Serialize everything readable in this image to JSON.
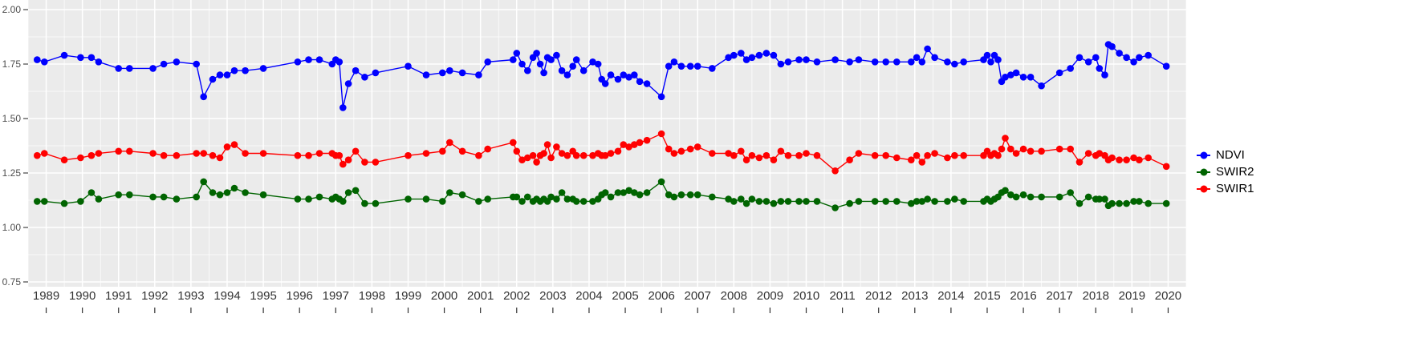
{
  "figure": {
    "background": "#FFFFFF",
    "panel_background": "#EBEBEB",
    "grid_color": "#FFFFFF",
    "axis_text_color": "#4D4D4D",
    "tick_color": "#333333"
  },
  "legend": {
    "position": "right",
    "items": [
      {
        "label": "NDVI",
        "color": "#0000FF"
      },
      {
        "label": "SWIR2",
        "color": "#006400"
      },
      {
        "label": "SWIR1",
        "color": "#FF0000"
      }
    ]
  },
  "chart_data": {
    "type": "line",
    "title": "",
    "xlabel": "",
    "ylabel": "",
    "grid": true,
    "legend_position": "right",
    "x_range": [
      1988.5,
      2020.5
    ],
    "y_range": [
      0.75,
      2.0
    ],
    "x_tick_labels": [
      "1989",
      "1990",
      "1991",
      "1992",
      "1993",
      "1994",
      "1995",
      "1996",
      "1997",
      "1998",
      "1999",
      "2000",
      "2001",
      "2002",
      "2003",
      "2004",
      "2005",
      "2006",
      "2007",
      "2008",
      "2009",
      "2010",
      "2011",
      "2012",
      "2013",
      "2014",
      "2015",
      "2016",
      "2017",
      "2018",
      "2019",
      "2020"
    ],
    "y_tick_labels": [
      "2.00",
      "1.75",
      "1.50",
      "1.25",
      "1.00",
      "0.75"
    ],
    "y_tick_values": [
      2.0,
      1.75,
      1.5,
      1.25,
      1.0,
      0.75
    ],
    "x": [
      1988.75,
      1988.95,
      1989.5,
      1989.95,
      1990.25,
      1990.45,
      1991.0,
      1991.3,
      1991.95,
      1992.25,
      1992.6,
      1993.15,
      1993.35,
      1993.6,
      1993.8,
      1994.0,
      1994.2,
      1994.5,
      1995.0,
      1995.95,
      1996.25,
      1996.55,
      1996.9,
      1997.0,
      1997.1,
      1997.2,
      1997.35,
      1997.55,
      1997.8,
      1998.1,
      1999.0,
      1999.5,
      1999.95,
      2000.15,
      2000.5,
      2000.95,
      2001.2,
      2001.9,
      2002.0,
      2002.15,
      2002.3,
      2002.45,
      2002.55,
      2002.65,
      2002.75,
      2002.85,
      2002.95,
      2003.1,
      2003.25,
      2003.4,
      2003.55,
      2003.65,
      2003.85,
      2004.1,
      2004.25,
      2004.35,
      2004.45,
      2004.6,
      2004.8,
      2004.95,
      2005.1,
      2005.25,
      2005.4,
      2005.6,
      2006.0,
      2006.2,
      2006.35,
      2006.55,
      2006.8,
      2007.0,
      2007.4,
      2007.85,
      2008.0,
      2008.2,
      2008.35,
      2008.5,
      2008.7,
      2008.9,
      2009.1,
      2009.3,
      2009.5,
      2009.8,
      2010.0,
      2010.3,
      2010.8,
      2011.2,
      2011.45,
      2011.9,
      2012.2,
      2012.5,
      2012.9,
      2013.05,
      2013.2,
      2013.35,
      2013.55,
      2013.9,
      2014.1,
      2014.35,
      2014.9,
      2015.0,
      2015.1,
      2015.2,
      2015.3,
      2015.4,
      2015.5,
      2015.65,
      2015.8,
      2016.0,
      2016.2,
      2016.5,
      2017.0,
      2017.3,
      2017.55,
      2017.8,
      2018.0,
      2018.1,
      2018.25,
      2018.35,
      2018.45,
      2018.65,
      2018.85,
      2019.05,
      2019.2,
      2019.45,
      2019.95
    ],
    "series": [
      {
        "name": "NDVI",
        "color": "#0000FF",
        "values": [
          1.77,
          1.76,
          1.79,
          1.78,
          1.78,
          1.76,
          1.73,
          1.73,
          1.73,
          1.75,
          1.76,
          1.75,
          1.6,
          1.68,
          1.7,
          1.7,
          1.72,
          1.72,
          1.73,
          1.76,
          1.77,
          1.77,
          1.75,
          1.77,
          1.76,
          1.55,
          1.66,
          1.72,
          1.69,
          1.71,
          1.74,
          1.7,
          1.71,
          1.72,
          1.71,
          1.7,
          1.76,
          1.77,
          1.8,
          1.75,
          1.72,
          1.78,
          1.8,
          1.75,
          1.71,
          1.78,
          1.77,
          1.79,
          1.72,
          1.7,
          1.74,
          1.77,
          1.72,
          1.76,
          1.75,
          1.68,
          1.66,
          1.7,
          1.68,
          1.7,
          1.69,
          1.7,
          1.67,
          1.66,
          1.6,
          1.74,
          1.76,
          1.74,
          1.74,
          1.74,
          1.73,
          1.78,
          1.79,
          1.8,
          1.77,
          1.78,
          1.79,
          1.8,
          1.79,
          1.75,
          1.76,
          1.77,
          1.77,
          1.76,
          1.77,
          1.76,
          1.77,
          1.76,
          1.76,
          1.76,
          1.76,
          1.78,
          1.76,
          1.82,
          1.78,
          1.76,
          1.75,
          1.76,
          1.77,
          1.79,
          1.76,
          1.79,
          1.77,
          1.67,
          1.69,
          1.7,
          1.71,
          1.69,
          1.69,
          1.65,
          1.71,
          1.73,
          1.78,
          1.76,
          1.78,
          1.73,
          1.7,
          1.84,
          1.83,
          1.8,
          1.78,
          1.76,
          1.78,
          1.79,
          1.74
        ]
      },
      {
        "name": "SWIR2",
        "color": "#006400",
        "values": [
          1.12,
          1.12,
          1.11,
          1.12,
          1.16,
          1.13,
          1.15,
          1.15,
          1.14,
          1.14,
          1.13,
          1.14,
          1.21,
          1.16,
          1.15,
          1.16,
          1.18,
          1.16,
          1.15,
          1.13,
          1.13,
          1.14,
          1.13,
          1.14,
          1.13,
          1.12,
          1.16,
          1.17,
          1.11,
          1.11,
          1.13,
          1.13,
          1.12,
          1.16,
          1.15,
          1.12,
          1.13,
          1.14,
          1.14,
          1.12,
          1.14,
          1.12,
          1.13,
          1.12,
          1.13,
          1.12,
          1.14,
          1.13,
          1.16,
          1.13,
          1.13,
          1.12,
          1.12,
          1.12,
          1.13,
          1.15,
          1.16,
          1.14,
          1.16,
          1.16,
          1.17,
          1.16,
          1.15,
          1.16,
          1.21,
          1.15,
          1.14,
          1.15,
          1.15,
          1.15,
          1.14,
          1.13,
          1.12,
          1.13,
          1.11,
          1.13,
          1.12,
          1.12,
          1.11,
          1.12,
          1.12,
          1.12,
          1.12,
          1.12,
          1.09,
          1.11,
          1.12,
          1.12,
          1.12,
          1.12,
          1.11,
          1.12,
          1.12,
          1.13,
          1.12,
          1.12,
          1.13,
          1.12,
          1.12,
          1.13,
          1.12,
          1.13,
          1.14,
          1.16,
          1.17,
          1.15,
          1.14,
          1.15,
          1.14,
          1.14,
          1.14,
          1.16,
          1.11,
          1.14,
          1.13,
          1.13,
          1.13,
          1.1,
          1.11,
          1.11,
          1.11,
          1.12,
          1.12,
          1.11,
          1.11
        ]
      },
      {
        "name": "SWIR1",
        "color": "#FF0000",
        "values": [
          1.33,
          1.34,
          1.31,
          1.32,
          1.33,
          1.34,
          1.35,
          1.35,
          1.34,
          1.33,
          1.33,
          1.34,
          1.34,
          1.33,
          1.32,
          1.37,
          1.38,
          1.34,
          1.34,
          1.33,
          1.33,
          1.34,
          1.34,
          1.33,
          1.33,
          1.29,
          1.31,
          1.35,
          1.3,
          1.3,
          1.33,
          1.34,
          1.35,
          1.39,
          1.35,
          1.33,
          1.36,
          1.39,
          1.35,
          1.31,
          1.32,
          1.33,
          1.3,
          1.33,
          1.34,
          1.38,
          1.32,
          1.37,
          1.34,
          1.33,
          1.35,
          1.33,
          1.33,
          1.33,
          1.34,
          1.33,
          1.33,
          1.34,
          1.35,
          1.38,
          1.37,
          1.38,
          1.39,
          1.4,
          1.43,
          1.36,
          1.34,
          1.35,
          1.36,
          1.37,
          1.34,
          1.34,
          1.33,
          1.35,
          1.31,
          1.33,
          1.32,
          1.33,
          1.31,
          1.35,
          1.33,
          1.33,
          1.34,
          1.33,
          1.26,
          1.31,
          1.34,
          1.33,
          1.33,
          1.32,
          1.31,
          1.33,
          1.3,
          1.33,
          1.34,
          1.32,
          1.33,
          1.33,
          1.33,
          1.35,
          1.33,
          1.34,
          1.33,
          1.36,
          1.41,
          1.36,
          1.34,
          1.36,
          1.35,
          1.35,
          1.36,
          1.36,
          1.3,
          1.34,
          1.33,
          1.34,
          1.33,
          1.31,
          1.32,
          1.31,
          1.31,
          1.32,
          1.31,
          1.32,
          1.28
        ]
      }
    ]
  }
}
